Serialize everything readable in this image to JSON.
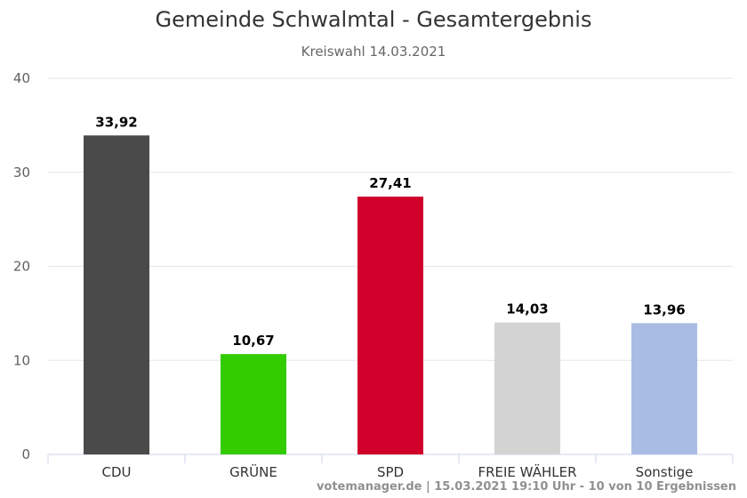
{
  "chart_data": {
    "type": "bar",
    "title": "Gemeinde Schwalmtal - Gesamtergebnis",
    "subtitle": "Kreiswahl 14.03.2021",
    "categories": [
      "CDU",
      "GRÜNE",
      "SPD",
      "FREIE WÄHLER",
      "Sonstige"
    ],
    "values": [
      33.92,
      10.67,
      27.41,
      14.03,
      13.96
    ],
    "value_labels": [
      "33,92",
      "10,67",
      "27,41",
      "14,03",
      "13,96"
    ],
    "colors": [
      "#4a4a4a",
      "#33cc00",
      "#d0002a",
      "#d3d3d3",
      "#a9bde4"
    ],
    "ylim": [
      0,
      40
    ],
    "yticks": [
      0,
      10,
      20,
      30,
      40
    ],
    "grid": true,
    "legend": "none"
  },
  "credits": "votemanager.de | 15.03.2021 19:10 Uhr - 10 von 10 Ergebnissen"
}
